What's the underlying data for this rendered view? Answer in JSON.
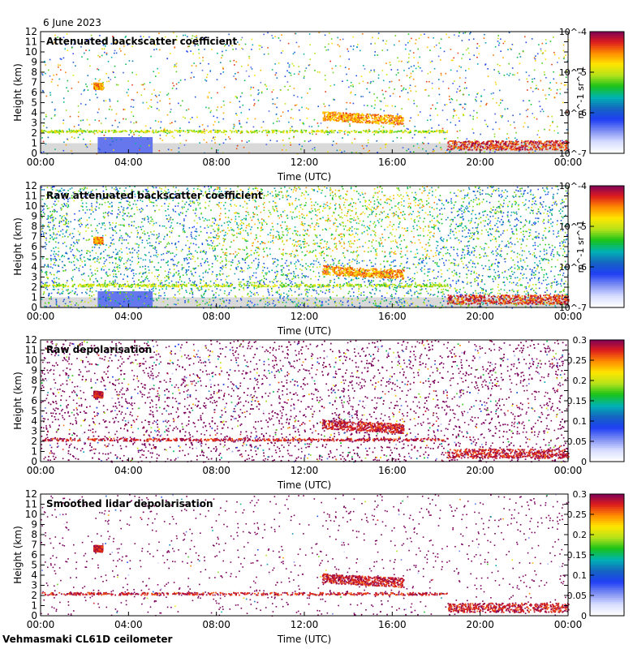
{
  "date": "6 June 2023",
  "footer": "Vehmasmaki CL61D ceilometer",
  "colors": {
    "missing_grey": "#d9d9d9",
    "colormap": [
      "#ffffff",
      "#d6dcff",
      "#7b8cf2",
      "#1f3ff5",
      "#1565c0",
      "#00b3b3",
      "#19c219",
      "#b6e21a",
      "#ffe600",
      "#ff8c00",
      "#dd1c1c",
      "#7a005c"
    ]
  },
  "chart_data": [
    {
      "type": "heatmap",
      "title": "Attenuated backscatter coefficient",
      "xlabel": "Time (UTC)",
      "ylabel": "Height (km)",
      "x_ticks": [
        "00:00",
        "04:00",
        "08:00",
        "12:00",
        "16:00",
        "20:00",
        "00:00"
      ],
      "y_ticks": [
        "0",
        "1",
        "2",
        "3",
        "4",
        "5",
        "6",
        "7",
        "8",
        "9",
        "10",
        "11",
        "12"
      ],
      "ylim": [
        0,
        12
      ],
      "xlim_hours": [
        0,
        24
      ],
      "colorbar": {
        "scale": "log",
        "ticks": [
          "10^-7",
          "10^-6",
          "10^-5",
          "10^-4"
        ],
        "unit": "m^-1 sr^-1"
      },
      "noise": "sparse"
    },
    {
      "type": "heatmap",
      "title": "Raw attenuated backscatter coefficient",
      "xlabel": "Time (UTC)",
      "ylabel": "Height (km)",
      "x_ticks": [
        "00:00",
        "04:00",
        "08:00",
        "12:00",
        "16:00",
        "20:00",
        "00:00"
      ],
      "y_ticks": [
        "0",
        "1",
        "2",
        "3",
        "4",
        "5",
        "6",
        "7",
        "8",
        "9",
        "10",
        "11",
        "12"
      ],
      "ylim": [
        0,
        12
      ],
      "xlim_hours": [
        0,
        24
      ],
      "colorbar": {
        "scale": "log",
        "ticks": [
          "10^-7",
          "10^-6",
          "10^-5",
          "10^-4"
        ],
        "unit": "m^-1 sr^-1"
      },
      "noise": "dense-backscatter"
    },
    {
      "type": "heatmap",
      "title": "Raw depolarisation",
      "xlabel": "Time (UTC)",
      "ylabel": "Height (km)",
      "x_ticks": [
        "00:00",
        "04:00",
        "08:00",
        "12:00",
        "16:00",
        "20:00",
        "00:00"
      ],
      "y_ticks": [
        "0",
        "1",
        "2",
        "3",
        "4",
        "5",
        "6",
        "7",
        "8",
        "9",
        "10",
        "11",
        "12"
      ],
      "ylim": [
        0,
        12
      ],
      "xlim_hours": [
        0,
        24
      ],
      "colorbar": {
        "scale": "linear",
        "ticks": [
          "0",
          "0.05",
          "0.1",
          "0.15",
          "0.2",
          "0.25",
          "0.3"
        ],
        "unit": ""
      },
      "noise": "dense-depol"
    },
    {
      "type": "heatmap",
      "title": "Smoothed lidar depolarisation",
      "xlabel": "Time (UTC)",
      "ylabel": "Height (km)",
      "x_ticks": [
        "00:00",
        "04:00",
        "08:00",
        "12:00",
        "16:00",
        "20:00",
        "00:00"
      ],
      "y_ticks": [
        "0",
        "1",
        "2",
        "3",
        "4",
        "5",
        "6",
        "7",
        "8",
        "9",
        "10",
        "11",
        "12"
      ],
      "ylim": [
        0,
        12
      ],
      "xlim_hours": [
        0,
        24
      ],
      "colorbar": {
        "scale": "linear",
        "ticks": [
          "0",
          "0.05",
          "0.1",
          "0.15",
          "0.2",
          "0.25",
          "0.3"
        ],
        "unit": ""
      },
      "noise": "sparse-depol"
    }
  ]
}
